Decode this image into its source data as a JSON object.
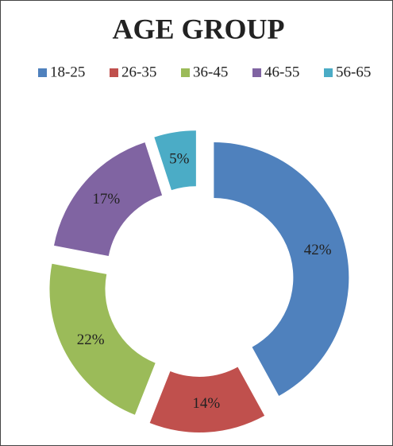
{
  "chart_data": {
    "type": "donut",
    "title": "AGE GROUP",
    "categories": [
      "18-25",
      "26-35",
      "36-45",
      "46-55",
      "56-65"
    ],
    "values": [
      42,
      14,
      22,
      17,
      5
    ],
    "value_labels": [
      "42%",
      "14%",
      "22%",
      "17%",
      "5%"
    ],
    "colors": [
      "#4f81bd",
      "#c0504d",
      "#9bbb59",
      "#8064a2",
      "#4bacc6"
    ],
    "legend": "top"
  }
}
